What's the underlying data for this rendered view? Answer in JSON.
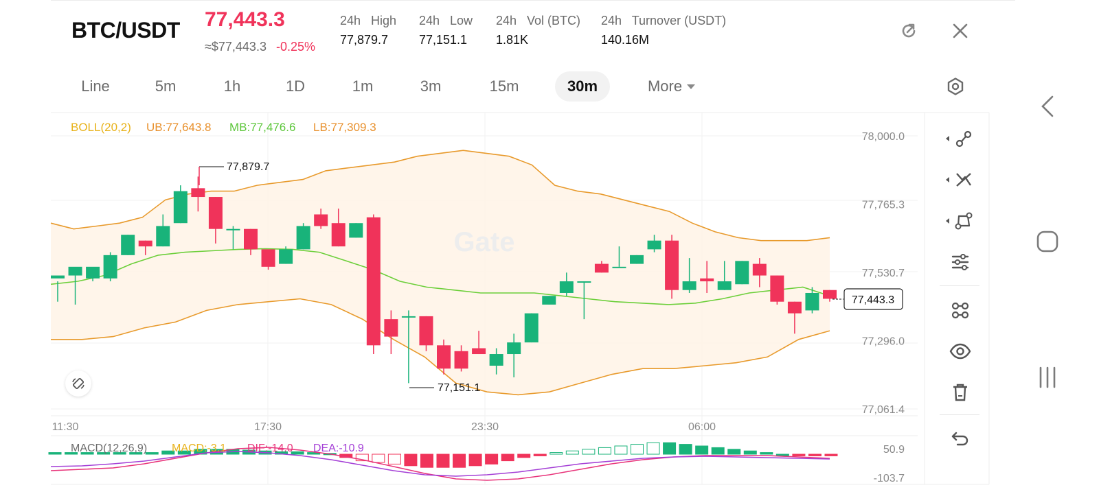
{
  "header": {
    "pair": "BTC/USDT",
    "last_price": "77,443.3",
    "usd_price": "≈$77,443.3",
    "change_pct": "-0.25%",
    "stats": [
      {
        "label": "24h   High",
        "value": "77,879.7"
      },
      {
        "label": "24h   Low",
        "value": "77,151.1"
      },
      {
        "label": "24h   Vol (BTC)",
        "value": "1.81K"
      },
      {
        "label": "24h   Turnover (USDT)",
        "value": "140.16M"
      }
    ]
  },
  "timeframes": {
    "items": [
      "Line",
      "5m",
      "1h",
      "1D",
      "1m",
      "3m",
      "15m",
      "30m",
      "More"
    ],
    "active": "30m"
  },
  "boll": {
    "label": "BOLL(20,2)",
    "ub": "UB:77,643.8",
    "mb": "MB:77,476.6",
    "lb": "LB:77,309.3"
  },
  "macd": {
    "label": "MACD(12,26,9)",
    "macd": "MACD:-3.1",
    "dif": "DIF:-14.0",
    "dea": "DEA:-10.9",
    "axis": [
      "50.9",
      "-103.7"
    ]
  },
  "watermark": "Gate",
  "colors": {
    "up": "#19b37a",
    "down": "#f0335a",
    "band": "#e89a2c",
    "mid": "#6ccf3a",
    "dif": "#e8337a",
    "dea": "#a43fd6"
  },
  "chart_data": {
    "type": "candlestick",
    "price_axis": [
      "78,000.0",
      "77,765.3",
      "77,530.7",
      "77,296.0",
      "77,061.4"
    ],
    "time_axis": [
      "11:30",
      "17:30",
      "23:30",
      "06:00"
    ],
    "high_label": "77,879.7",
    "low_label": "77,151.1",
    "current_label": "77,443.3",
    "ylim": [
      77061.4,
      78000.0
    ],
    "candles": [
      [
        77510,
        77520,
        77500,
        77430
      ],
      [
        77520,
        77550,
        77520,
        77420
      ],
      [
        77510,
        77550,
        77520,
        77500
      ],
      [
        77510,
        77590,
        77600,
        77500
      ],
      [
        77590,
        77660,
        77660,
        77590
      ],
      [
        77640,
        77620,
        77640,
        77590
      ],
      [
        77620,
        77690,
        77730,
        77620
      ],
      [
        77700,
        77810,
        77830,
        77700
      ],
      [
        77820,
        77790,
        77860,
        77740
      ],
      [
        77790,
        77680,
        77790,
        77630
      ],
      [
        77680,
        77680,
        77690,
        77610
      ],
      [
        77680,
        77610,
        77680,
        77590
      ],
      [
        77610,
        77550,
        77580,
        77540
      ],
      [
        77560,
        77610,
        77620,
        77560
      ],
      [
        77610,
        77690,
        77700,
        77610
      ],
      [
        77730,
        77690,
        77750,
        77680
      ],
      [
        77700,
        77620,
        77750,
        77620
      ],
      [
        77650,
        77700,
        77700,
        77650
      ],
      [
        77720,
        77280,
        77730,
        77250
      ],
      [
        77370,
        77310,
        77400,
        77250
      ],
      [
        77380,
        77380,
        77400,
        77150
      ],
      [
        77380,
        77280,
        77380,
        77260
      ],
      [
        77280,
        77200,
        77300,
        77180
      ],
      [
        77260,
        77200,
        77280,
        77190
      ],
      [
        77270,
        77250,
        77330,
        77250
      ],
      [
        77210,
        77250,
        77270,
        77180
      ],
      [
        77250,
        77290,
        77320,
        77170
      ],
      [
        77290,
        77390,
        77390,
        77290
      ],
      [
        77420,
        77450,
        77450,
        77420
      ],
      [
        77460,
        77500,
        77530,
        77450
      ],
      [
        77500,
        77500,
        77500,
        77370
      ],
      [
        77560,
        77530,
        77570,
        77530
      ],
      [
        77550,
        77550,
        77620,
        77550
      ],
      [
        77560,
        77590,
        77590,
        77560
      ],
      [
        77610,
        77640,
        77660,
        77600
      ],
      [
        77640,
        77470,
        77660,
        77440
      ],
      [
        77470,
        77500,
        77580,
        77460
      ],
      [
        77510,
        77500,
        77570,
        77460
      ],
      [
        77470,
        77500,
        77570,
        77470
      ],
      [
        77490,
        77570,
        77570,
        77490
      ],
      [
        77560,
        77520,
        77580,
        77480
      ],
      [
        77520,
        77430,
        77520,
        77420
      ],
      [
        77430,
        77390,
        77430,
        77320
      ],
      [
        77400,
        77460,
        77480,
        77390
      ],
      [
        77470,
        77440,
        77470,
        77430
      ]
    ],
    "boll_upper": [
      77700,
      77680,
      77690,
      77700,
      77720,
      77780,
      77800,
      77810,
      77810,
      77830,
      77840,
      77850,
      77880,
      77890,
      77900,
      77910,
      77930,
      77940,
      77950,
      77940,
      77930,
      77900,
      77830,
      77810,
      77800,
      77780,
      77760,
      77740,
      77700,
      77670,
      77650,
      77640,
      77640,
      77640,
      77650
    ],
    "boll_mid": [
      77490,
      77500,
      77520,
      77560,
      77590,
      77600,
      77605,
      77610,
      77612,
      77610,
      77600,
      77570,
      77540,
      77500,
      77480,
      77470,
      77460,
      77460,
      77460,
      77450,
      77440,
      77430,
      77425,
      77420,
      77425,
      77440,
      77460,
      77470,
      77480,
      77450
    ],
    "boll_lower": [
      77300,
      77300,
      77310,
      77340,
      77360,
      77400,
      77420,
      77430,
      77440,
      77420,
      77370,
      77300,
      77240,
      77150,
      77120,
      77110,
      77120,
      77150,
      77180,
      77200,
      77200,
      77210,
      77220,
      77240,
      77300,
      77330
    ]
  }
}
